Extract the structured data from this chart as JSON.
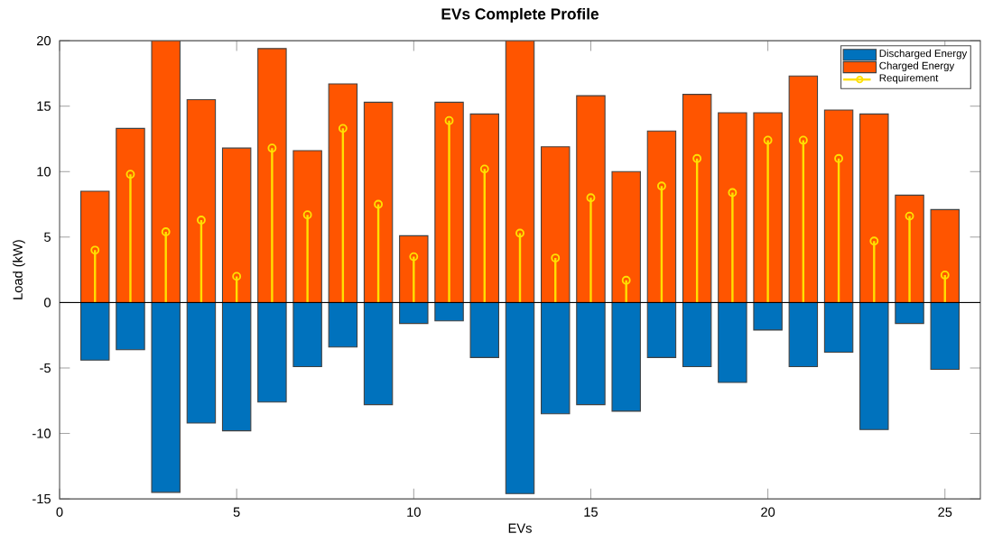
{
  "chart_data": {
    "type": "bar",
    "title": "EVs Complete Profile",
    "xlabel": "EVs",
    "ylabel": "Load (kW)",
    "xlim": [
      0,
      26
    ],
    "xticks": [
      0,
      5,
      10,
      15,
      20,
      25
    ],
    "ylim": [
      -15,
      20
    ],
    "yticks": [
      -15,
      -10,
      -5,
      0,
      5,
      10,
      15,
      20
    ],
    "legend": "top right",
    "stacked": true,
    "ref_lines": [
      {
        "axis": "y",
        "value": 0,
        "color": "#000000"
      }
    ],
    "series": [
      {
        "name": "Discharged Energy",
        "color": "#0072bd",
        "x": [
          1,
          2,
          3,
          4,
          5,
          6,
          7,
          8,
          9,
          10,
          11,
          12,
          13,
          14,
          15,
          16,
          17,
          18,
          19,
          20,
          21,
          22,
          23,
          24,
          25
        ],
        "values": [
          -4.4,
          -3.6,
          -14.5,
          -9.2,
          -9.8,
          -7.6,
          -4.9,
          -3.4,
          -7.8,
          -1.6,
          -1.4,
          -4.2,
          -14.6,
          -8.5,
          -7.8,
          -8.3,
          -4.2,
          -4.9,
          -6.1,
          -2.1,
          -4.9,
          -3.8,
          -9.7,
          -1.6,
          -5.1
        ]
      },
      {
        "name": "Charged Energy",
        "color": "#ff5500",
        "x": [
          1,
          2,
          3,
          4,
          5,
          6,
          7,
          8,
          9,
          10,
          11,
          12,
          13,
          14,
          15,
          16,
          17,
          18,
          19,
          20,
          21,
          22,
          23,
          24,
          25
        ],
        "values": [
          8.5,
          13.3,
          20,
          15.5,
          11.8,
          19.4,
          11.6,
          16.7,
          15.3,
          5.1,
          15.3,
          14.4,
          20,
          11.9,
          15.8,
          10,
          13.1,
          15.9,
          14.5,
          14.5,
          17.3,
          14.7,
          14.4,
          8.2,
          7.1
        ]
      },
      {
        "name": "Requirement",
        "type": "lollipop",
        "color": "#ffe000",
        "marker": "circle",
        "x": [
          1,
          2,
          3,
          4,
          5,
          6,
          7,
          8,
          9,
          10,
          11,
          12,
          13,
          14,
          15,
          16,
          17,
          18,
          19,
          20,
          21,
          22,
          23,
          24,
          25
        ],
        "values": [
          4,
          9.8,
          5.4,
          6.3,
          2,
          11.8,
          6.7,
          13.3,
          7.5,
          3.5,
          13.9,
          10.2,
          5.3,
          3.4,
          8,
          1.7,
          8.9,
          11,
          8.4,
          12.4,
          12.4,
          11,
          4.7,
          6.6,
          2.1
        ]
      }
    ]
  }
}
